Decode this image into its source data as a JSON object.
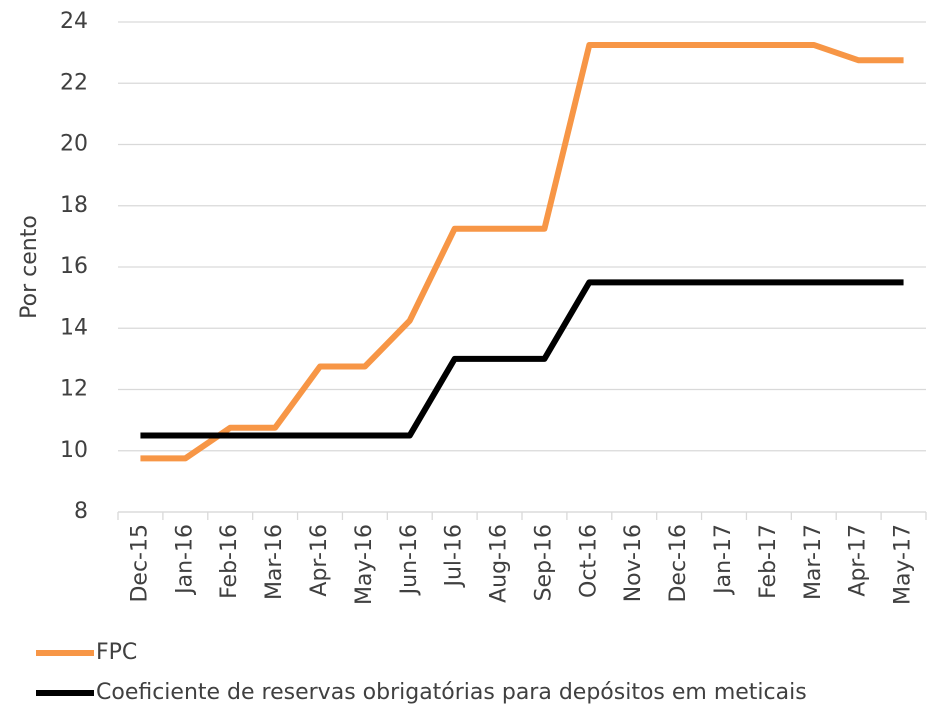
{
  "chart_data": {
    "type": "line",
    "y_label": "Por cento",
    "categories": [
      "Dec-15",
      "Jan-16",
      "Feb-16",
      "Mar-16",
      "Apr-16",
      "May-16",
      "Jun-16",
      "Jul-16",
      "Aug-16",
      "Sep-16",
      "Oct-16",
      "Nov-16",
      "Dec-16",
      "Jan-17",
      "Feb-17",
      "Mar-17",
      "Apr-17",
      "May-17"
    ],
    "series": [
      {
        "name": "FPC",
        "color": "#f79646",
        "values": [
          9.75,
          9.75,
          10.75,
          10.75,
          12.75,
          12.75,
          14.25,
          17.25,
          17.25,
          17.25,
          23.25,
          23.25,
          23.25,
          23.25,
          23.25,
          23.25,
          22.75,
          22.75
        ]
      },
      {
        "name": "Coeficiente de reservas obrigatórias para depósitos em meticais",
        "color": "#000000",
        "values": [
          10.5,
          10.5,
          10.5,
          10.5,
          10.5,
          10.5,
          10.5,
          13,
          13,
          13,
          15.5,
          15.5,
          15.5,
          15.5,
          15.5,
          15.5,
          15.5,
          15.5
        ]
      }
    ],
    "ylim": [
      8,
      24
    ],
    "yticks": [
      8,
      10,
      12,
      14,
      16,
      18,
      20,
      22,
      24
    ],
    "grid": true,
    "legend": "bottom"
  }
}
